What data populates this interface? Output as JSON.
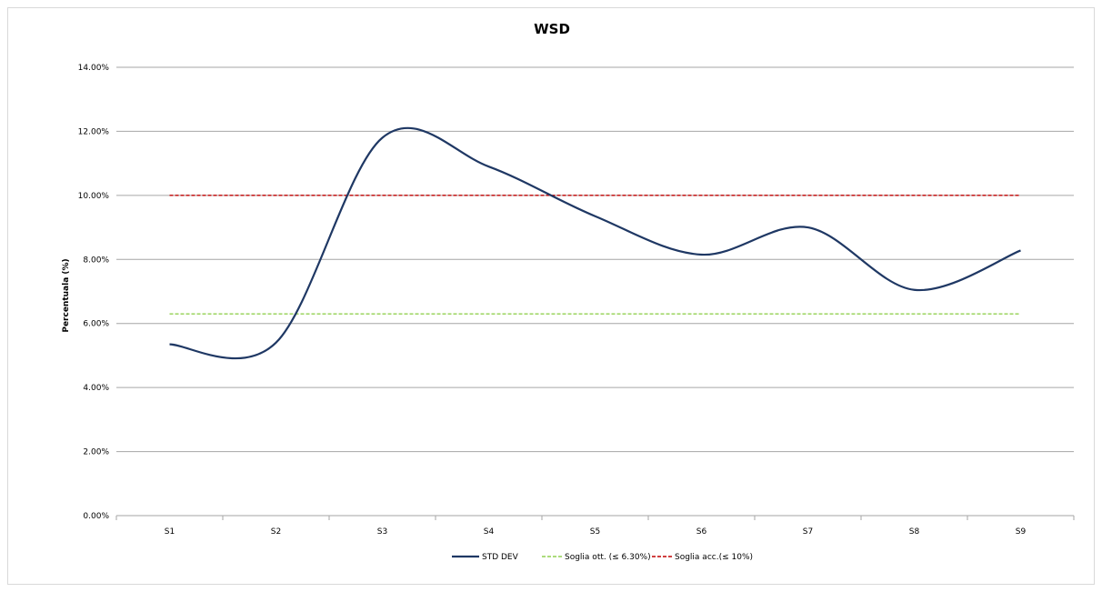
{
  "chart_data": {
    "type": "line",
    "title": "WSD",
    "xlabel": "",
    "ylabel": "Percentuala (%)",
    "categories": [
      "S1",
      "S2",
      "S3",
      "S4",
      "S5",
      "S6",
      "S7",
      "S8",
      "S9"
    ],
    "ylim": [
      0,
      14
    ],
    "yticks": [
      "0.00%",
      "2.00%",
      "4.00%",
      "6.00%",
      "8.00%",
      "10.00%",
      "12.00%",
      "14.00%"
    ],
    "grid": true,
    "legend_position": "bottom",
    "series": [
      {
        "name": "STD DEV",
        "color": "#1f3864",
        "style": "solid-smooth",
        "values": [
          5.35,
          5.4,
          11.8,
          10.9,
          9.35,
          8.15,
          9.0,
          7.05,
          8.28
        ]
      },
      {
        "name": "Soglia ott. (≤ 6.30%)",
        "color": "#92d050",
        "style": "dashed",
        "values": [
          6.3,
          6.3,
          6.3,
          6.3,
          6.3,
          6.3,
          6.3,
          6.3,
          6.3
        ]
      },
      {
        "name": "Soglia acc.(≤ 10%)",
        "color": "#c00000",
        "style": "dashed",
        "values": [
          10,
          10,
          10,
          10,
          10,
          10,
          10,
          10,
          10
        ]
      }
    ]
  }
}
